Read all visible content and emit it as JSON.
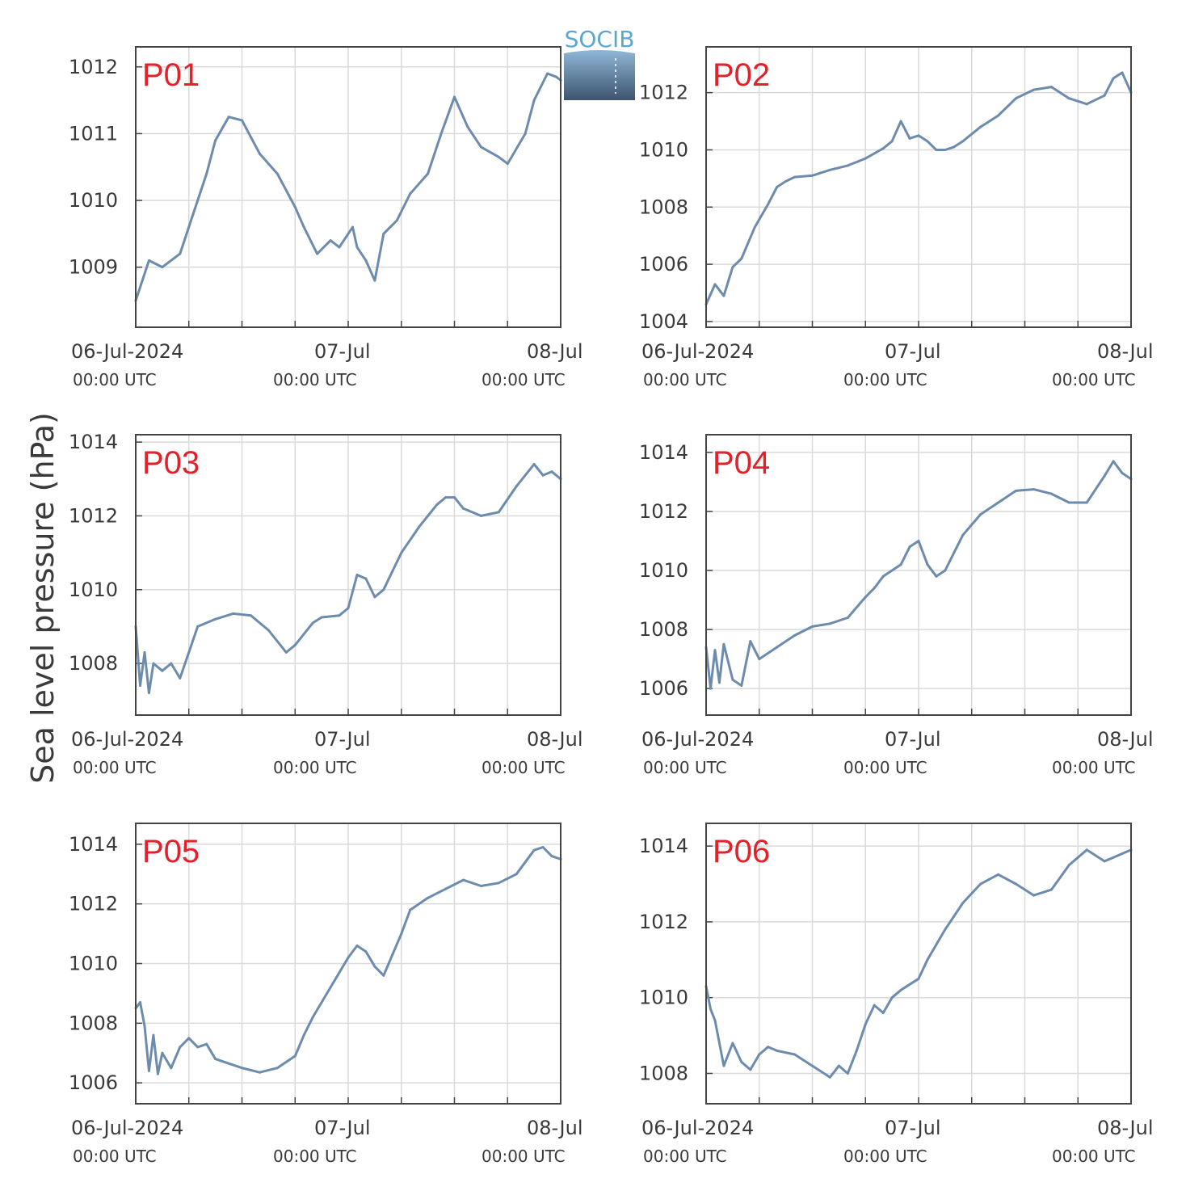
{
  "figure": {
    "ylabel": "Sea level pressure (hPa)",
    "logo_text": "SOCIB",
    "line_color": "#6d8cad",
    "panel_label_color": "#e4202a",
    "grid_color": "#dadada",
    "axis_color": "#444444"
  },
  "chart_data": [
    {
      "type": "line",
      "title": "P01",
      "x": [
        "06-Jul 00:00",
        "06-Jul 01:30",
        "06-Jul 03:00",
        "06-Jul 05:00",
        "06-Jul 06:30",
        "06-Jul 08:00",
        "06-Jul 09:00",
        "06-Jul 10:30",
        "06-Jul 12:00",
        "06-Jul 14:00",
        "06-Jul 16:00",
        "06-Jul 18:00",
        "06-Jul 19:00",
        "06-Jul 20:30",
        "06-Jul 22:00",
        "06-Jul 23:00",
        "07-Jul 00:30",
        "07-Jul 01:00",
        "07-Jul 02:00",
        "07-Jul 03:00",
        "07-Jul 04:00",
        "07-Jul 05:30",
        "07-Jul 07:00",
        "07-Jul 09:00",
        "07-Jul 10:30",
        "07-Jul 12:00",
        "07-Jul 13:30",
        "07-Jul 15:00",
        "07-Jul 17:00",
        "07-Jul 18:00",
        "07-Jul 20:00",
        "07-Jul 21:00",
        "07-Jul 22:30",
        "07-Jul 23:30",
        "08-Jul 00:00"
      ],
      "series": [
        {
          "values": [
            1008.5,
            1009.1,
            1009.0,
            1009.2,
            1009.8,
            1010.4,
            1010.9,
            1011.25,
            1011.2,
            1010.7,
            1010.4,
            1009.9,
            1009.6,
            1009.2,
            1009.4,
            1009.3,
            1009.6,
            1009.3,
            1009.1,
            1008.8,
            1009.5,
            1009.7,
            1010.1,
            1010.4,
            1011.0,
            1011.55,
            1011.1,
            1010.8,
            1010.65,
            1010.55,
            1011.0,
            1011.5,
            1011.9,
            1011.85,
            1011.8
          ]
        }
      ],
      "x_ticks": [
        "06-Jul-2024",
        "07-Jul",
        "08-Jul"
      ],
      "x_sublabels": [
        "00:00 UTC",
        "00:00 UTC",
        "00:00 UTC"
      ],
      "ylim": [
        1008.1,
        1012.3
      ],
      "yticks": [
        1009,
        1010,
        1011,
        1012
      ],
      "grid": true
    },
    {
      "type": "line",
      "title": "P02",
      "x": [
        "06-Jul 00:00",
        "06-Jul 01:00",
        "06-Jul 02:00",
        "06-Jul 03:00",
        "06-Jul 04:00",
        "06-Jul 05:30",
        "06-Jul 07:00",
        "06-Jul 08:00",
        "06-Jul 09:00",
        "06-Jul 10:00",
        "06-Jul 12:00",
        "06-Jul 14:00",
        "06-Jul 16:00",
        "06-Jul 18:00",
        "06-Jul 20:00",
        "06-Jul 21:00",
        "06-Jul 22:00",
        "06-Jul 23:00",
        "07-Jul 00:00",
        "07-Jul 01:00",
        "07-Jul 02:00",
        "07-Jul 03:00",
        "07-Jul 04:00",
        "07-Jul 05:00",
        "07-Jul 07:00",
        "07-Jul 09:00",
        "07-Jul 11:00",
        "07-Jul 13:00",
        "07-Jul 15:00",
        "07-Jul 17:00",
        "07-Jul 19:00",
        "07-Jul 21:00",
        "07-Jul 22:00",
        "07-Jul 23:00",
        "08-Jul 00:00"
      ],
      "series": [
        {
          "values": [
            1004.6,
            1005.3,
            1004.9,
            1005.9,
            1006.2,
            1007.3,
            1008.1,
            1008.7,
            1008.9,
            1009.05,
            1009.1,
            1009.3,
            1009.45,
            1009.7,
            1010.05,
            1010.3,
            1011.0,
            1010.4,
            1010.5,
            1010.3,
            1010.0,
            1010.0,
            1010.1,
            1010.3,
            1010.8,
            1011.2,
            1011.8,
            1012.1,
            1012.2,
            1011.8,
            1011.6,
            1011.9,
            1012.5,
            1012.7,
            1012.0
          ]
        }
      ],
      "x_ticks": [
        "06-Jul-2024",
        "07-Jul",
        "08-Jul"
      ],
      "x_sublabels": [
        "00:00 UTC",
        "00:00 UTC",
        "00:00 UTC"
      ],
      "ylim": [
        1003.8,
        1013.6
      ],
      "yticks": [
        1004,
        1006,
        1008,
        1010,
        1012
      ],
      "grid": true
    },
    {
      "type": "line",
      "title": "P03",
      "x": [
        "06-Jul 00:00",
        "06-Jul 00:30",
        "06-Jul 01:00",
        "06-Jul 01:30",
        "06-Jul 02:00",
        "06-Jul 03:00",
        "06-Jul 04:00",
        "06-Jul 05:00",
        "06-Jul 06:00",
        "06-Jul 07:00",
        "06-Jul 09:00",
        "06-Jul 11:00",
        "06-Jul 13:00",
        "06-Jul 15:00",
        "06-Jul 17:00",
        "06-Jul 18:00",
        "06-Jul 20:00",
        "06-Jul 21:00",
        "06-Jul 23:00",
        "07-Jul 00:00",
        "07-Jul 01:00",
        "07-Jul 02:00",
        "07-Jul 03:00",
        "07-Jul 04:00",
        "07-Jul 05:00",
        "07-Jul 06:00",
        "07-Jul 08:00",
        "07-Jul 10:00",
        "07-Jul 11:00",
        "07-Jul 12:00",
        "07-Jul 13:00",
        "07-Jul 15:00",
        "07-Jul 17:00",
        "07-Jul 19:00",
        "07-Jul 21:00",
        "07-Jul 22:00",
        "07-Jul 23:00",
        "08-Jul 00:00"
      ],
      "series": [
        {
          "values": [
            1009.0,
            1007.4,
            1008.3,
            1007.2,
            1008.0,
            1007.8,
            1008.0,
            1007.6,
            1008.3,
            1009.0,
            1009.2,
            1009.35,
            1009.3,
            1008.9,
            1008.3,
            1008.5,
            1009.1,
            1009.25,
            1009.3,
            1009.5,
            1010.4,
            1010.3,
            1009.8,
            1010.0,
            1010.5,
            1011.0,
            1011.7,
            1012.3,
            1012.5,
            1012.5,
            1012.2,
            1012.0,
            1012.1,
            1012.8,
            1013.4,
            1013.1,
            1013.2,
            1013.0
          ]
        }
      ],
      "x_ticks": [
        "06-Jul-2024",
        "07-Jul",
        "08-Jul"
      ],
      "x_sublabels": [
        "00:00 UTC",
        "00:00 UTC",
        "00:00 UTC"
      ],
      "ylim": [
        1006.6,
        1014.2
      ],
      "yticks": [
        1008,
        1010,
        1012,
        1014
      ],
      "grid": true
    },
    {
      "type": "line",
      "title": "P04",
      "x": [
        "06-Jul 00:00",
        "06-Jul 00:30",
        "06-Jul 01:00",
        "06-Jul 01:30",
        "06-Jul 02:00",
        "06-Jul 03:00",
        "06-Jul 04:00",
        "06-Jul 05:00",
        "06-Jul 06:00",
        "06-Jul 08:00",
        "06-Jul 10:00",
        "06-Jul 12:00",
        "06-Jul 14:00",
        "06-Jul 16:00",
        "06-Jul 18:00",
        "06-Jul 19:00",
        "06-Jul 20:00",
        "06-Jul 22:00",
        "06-Jul 23:00",
        "07-Jul 00:00",
        "07-Jul 01:00",
        "07-Jul 02:00",
        "07-Jul 03:00",
        "07-Jul 04:00",
        "07-Jul 05:00",
        "07-Jul 07:00",
        "07-Jul 09:00",
        "07-Jul 11:00",
        "07-Jul 13:00",
        "07-Jul 15:00",
        "07-Jul 17:00",
        "07-Jul 19:00",
        "07-Jul 21:00",
        "07-Jul 22:00",
        "07-Jul 23:00",
        "08-Jul 00:00"
      ],
      "series": [
        {
          "values": [
            1007.4,
            1006.0,
            1007.3,
            1006.2,
            1007.5,
            1006.3,
            1006.1,
            1007.6,
            1007.0,
            1007.4,
            1007.8,
            1008.1,
            1008.2,
            1008.4,
            1009.1,
            1009.4,
            1009.8,
            1010.2,
            1010.8,
            1011.0,
            1010.2,
            1009.8,
            1010.0,
            1010.6,
            1011.2,
            1011.9,
            1012.3,
            1012.7,
            1012.75,
            1012.6,
            1012.3,
            1012.3,
            1013.2,
            1013.7,
            1013.3,
            1013.1
          ]
        }
      ],
      "x_ticks": [
        "06-Jul-2024",
        "07-Jul",
        "08-Jul"
      ],
      "x_sublabels": [
        "00:00 UTC",
        "00:00 UTC",
        "00:00 UTC"
      ],
      "ylim": [
        1005.1,
        1014.6
      ],
      "yticks": [
        1006,
        1008,
        1010,
        1012,
        1014
      ],
      "grid": true
    },
    {
      "type": "line",
      "title": "P05",
      "x": [
        "06-Jul 00:00",
        "06-Jul 00:30",
        "06-Jul 01:00",
        "06-Jul 01:30",
        "06-Jul 02:00",
        "06-Jul 02:30",
        "06-Jul 03:00",
        "06-Jul 04:00",
        "06-Jul 05:00",
        "06-Jul 06:00",
        "06-Jul 07:00",
        "06-Jul 08:00",
        "06-Jul 09:00",
        "06-Jul 10:00",
        "06-Jul 12:00",
        "06-Jul 14:00",
        "06-Jul 16:00",
        "06-Jul 18:00",
        "06-Jul 19:00",
        "06-Jul 20:00",
        "06-Jul 22:00",
        "07-Jul 00:00",
        "07-Jul 01:00",
        "07-Jul 02:00",
        "07-Jul 03:00",
        "07-Jul 04:00",
        "07-Jul 05:00",
        "07-Jul 06:00",
        "07-Jul 07:00",
        "07-Jul 09:00",
        "07-Jul 11:00",
        "07-Jul 13:00",
        "07-Jul 15:00",
        "07-Jul 17:00",
        "07-Jul 19:00",
        "07-Jul 21:00",
        "07-Jul 22:00",
        "07-Jul 23:00",
        "08-Jul 00:00"
      ],
      "series": [
        {
          "values": [
            1008.5,
            1008.7,
            1007.9,
            1006.4,
            1007.6,
            1006.3,
            1007.0,
            1006.5,
            1007.2,
            1007.5,
            1007.2,
            1007.3,
            1006.8,
            1006.7,
            1006.5,
            1006.35,
            1006.5,
            1006.9,
            1007.6,
            1008.2,
            1009.2,
            1010.2,
            1010.6,
            1010.4,
            1009.9,
            1009.6,
            1010.3,
            1011.0,
            1011.8,
            1012.2,
            1012.5,
            1012.8,
            1012.6,
            1012.7,
            1013.0,
            1013.8,
            1013.9,
            1013.6,
            1013.5
          ]
        }
      ],
      "x_ticks": [
        "06-Jul-2024",
        "07-Jul",
        "08-Jul"
      ],
      "x_sublabels": [
        "00:00 UTC",
        "00:00 UTC",
        "00:00 UTC"
      ],
      "ylim": [
        1005.3,
        1014.7
      ],
      "yticks": [
        1006,
        1008,
        1010,
        1012,
        1014
      ],
      "grid": true
    },
    {
      "type": "line",
      "title": "P06",
      "x": [
        "06-Jul 00:00",
        "06-Jul 00:30",
        "06-Jul 01:00",
        "06-Jul 02:00",
        "06-Jul 03:00",
        "06-Jul 04:00",
        "06-Jul 05:00",
        "06-Jul 06:00",
        "06-Jul 07:00",
        "06-Jul 08:00",
        "06-Jul 10:00",
        "06-Jul 12:00",
        "06-Jul 14:00",
        "06-Jul 15:00",
        "06-Jul 16:00",
        "06-Jul 17:00",
        "06-Jul 18:00",
        "06-Jul 19:00",
        "06-Jul 20:00",
        "06-Jul 21:00",
        "06-Jul 22:00",
        "07-Jul 00:00",
        "07-Jul 01:00",
        "07-Jul 03:00",
        "07-Jul 05:00",
        "07-Jul 07:00",
        "07-Jul 09:00",
        "07-Jul 11:00",
        "07-Jul 13:00",
        "07-Jul 15:00",
        "07-Jul 17:00",
        "07-Jul 19:00",
        "07-Jul 21:00",
        "07-Jul 22:00",
        "07-Jul 23:00",
        "08-Jul 00:00"
      ],
      "series": [
        {
          "values": [
            1010.3,
            1009.7,
            1009.4,
            1008.2,
            1008.8,
            1008.3,
            1008.1,
            1008.5,
            1008.7,
            1008.6,
            1008.5,
            1008.2,
            1007.9,
            1008.2,
            1008.0,
            1008.6,
            1009.3,
            1009.8,
            1009.6,
            1010.0,
            1010.2,
            1010.5,
            1011.0,
            1011.8,
            1012.5,
            1013.0,
            1013.25,
            1013.0,
            1012.7,
            1012.85,
            1013.5,
            1013.9,
            1013.6,
            1013.7,
            1013.8,
            1013.9
          ]
        }
      ],
      "x_ticks": [
        "06-Jul-2024",
        "07-Jul",
        "08-Jul"
      ],
      "x_sublabels": [
        "00:00 UTC",
        "00:00 UTC",
        "00:00 UTC"
      ],
      "ylim": [
        1007.2,
        1014.6
      ],
      "yticks": [
        1008,
        1010,
        1012,
        1014
      ],
      "grid": true
    }
  ]
}
